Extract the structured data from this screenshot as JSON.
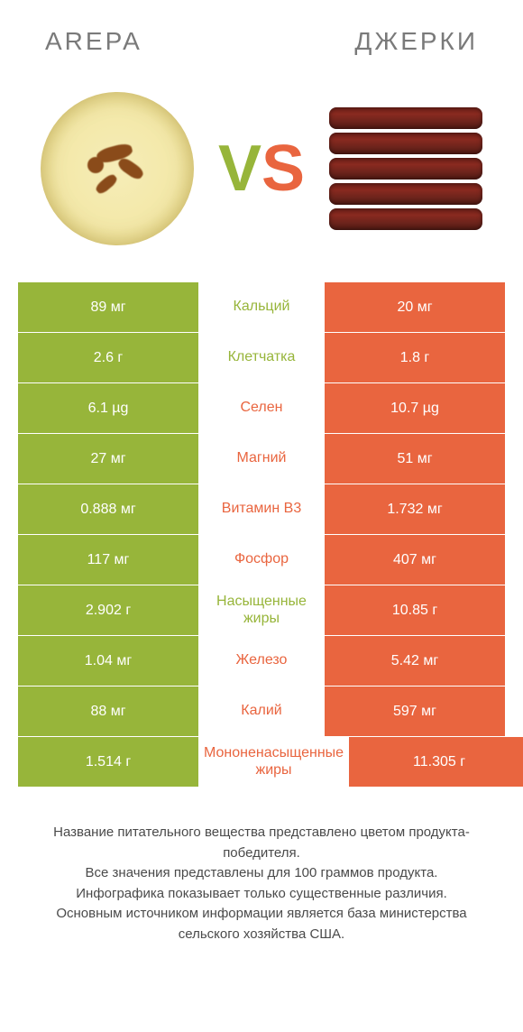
{
  "header": {
    "leftTitle": "AREPA",
    "rightTitle": "ДЖЕРКИ",
    "vs_v": "V",
    "vs_s": "S"
  },
  "colors": {
    "green": "#97b53a",
    "orange": "#e9653f",
    "text": "#4a4a4a",
    "grey": "#8a8a8a"
  },
  "rows": [
    {
      "left": "89 мг",
      "mid": "Кальций",
      "right": "20 мг",
      "winner": "left"
    },
    {
      "left": "2.6 г",
      "mid": "Клетчатка",
      "right": "1.8 г",
      "winner": "left"
    },
    {
      "left": "6.1 µg",
      "mid": "Селен",
      "right": "10.7 µg",
      "winner": "right"
    },
    {
      "left": "27 мг",
      "mid": "Магний",
      "right": "51 мг",
      "winner": "right"
    },
    {
      "left": "0.888 мг",
      "mid": "Витамин B3",
      "right": "1.732 мг",
      "winner": "right"
    },
    {
      "left": "117 мг",
      "mid": "Фосфор",
      "right": "407 мг",
      "winner": "right"
    },
    {
      "left": "2.902 г",
      "mid": "Насыщенные жиры",
      "right": "10.85 г",
      "winner": "left"
    },
    {
      "left": "1.04 мг",
      "mid": "Железо",
      "right": "5.42 мг",
      "winner": "right"
    },
    {
      "left": "88 мг",
      "mid": "Калий",
      "right": "597 мг",
      "winner": "right"
    },
    {
      "left": "1.514 г",
      "mid": "Мононенасыщенные жиры",
      "right": "11.305 г",
      "winner": "right"
    }
  ],
  "footnote": "Название питательного вещества представлено цветом продукта-победителя.\nВсе значения представлены для 100 граммов продукта.\nИнфографика показывает только существенные различия.\nОсновным источником информации является база министерства сельского хозяйства США."
}
